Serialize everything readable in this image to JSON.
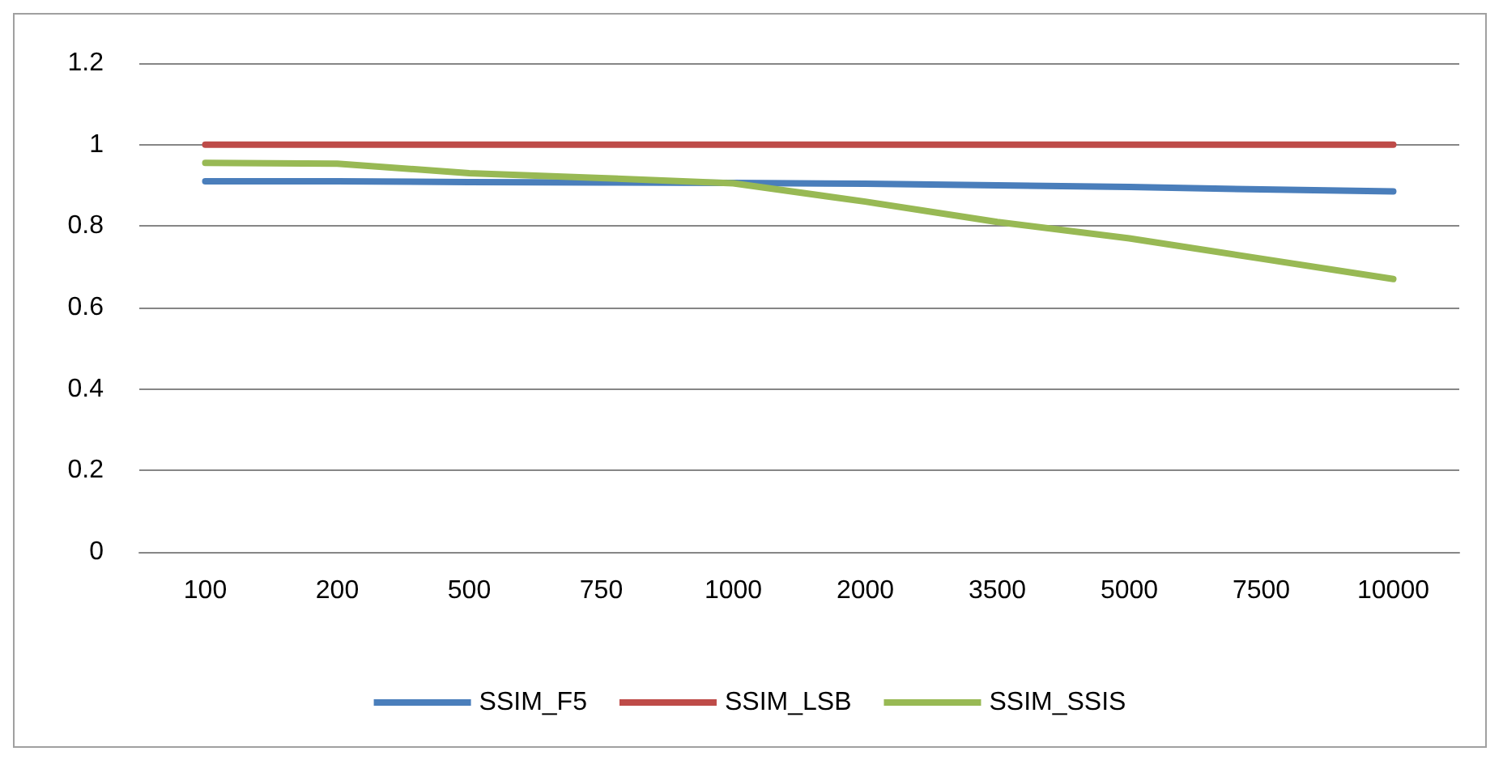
{
  "chart_data": {
    "type": "line",
    "categories": [
      "100",
      "200",
      "500",
      "750",
      "1000",
      "2000",
      "3500",
      "5000",
      "7500",
      "10000"
    ],
    "series": [
      {
        "name": "SSIM_F5",
        "color": "#4a7ebb",
        "values": [
          0.91,
          0.91,
          0.908,
          0.907,
          0.906,
          0.904,
          0.9,
          0.896,
          0.89,
          0.885
        ]
      },
      {
        "name": "SSIM_LSB",
        "color": "#be4b48",
        "values": [
          1.0,
          1.0,
          1.0,
          1.0,
          1.0,
          1.0,
          1.0,
          1.0,
          1.0,
          1.0
        ]
      },
      {
        "name": "SSIM_SSIS",
        "color": "#98b954",
        "values": [
          0.955,
          0.953,
          0.93,
          0.918,
          0.905,
          0.86,
          0.81,
          0.77,
          0.72,
          0.67
        ]
      }
    ],
    "ylim": [
      0,
      1.2
    ],
    "yticks": [
      0,
      0.2,
      0.4,
      0.6,
      0.8,
      1,
      1.2
    ],
    "grid": "y",
    "legend": "bottom",
    "marker": "none",
    "line_style": "solid"
  }
}
